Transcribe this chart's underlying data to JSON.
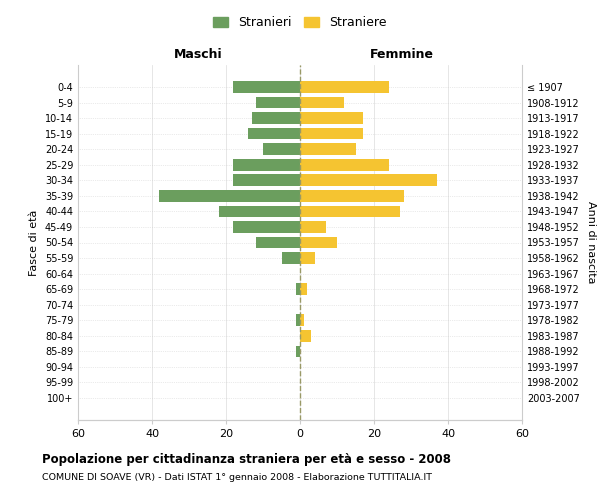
{
  "age_groups": [
    "0-4",
    "5-9",
    "10-14",
    "15-19",
    "20-24",
    "25-29",
    "30-34",
    "35-39",
    "40-44",
    "45-49",
    "50-54",
    "55-59",
    "60-64",
    "65-69",
    "70-74",
    "75-79",
    "80-84",
    "85-89",
    "90-94",
    "95-99",
    "100+"
  ],
  "birth_years": [
    "2003-2007",
    "1998-2002",
    "1993-1997",
    "1988-1992",
    "1983-1987",
    "1978-1982",
    "1973-1977",
    "1968-1972",
    "1963-1967",
    "1958-1962",
    "1953-1957",
    "1948-1952",
    "1943-1947",
    "1938-1942",
    "1933-1937",
    "1928-1932",
    "1923-1927",
    "1918-1922",
    "1913-1917",
    "1908-1912",
    "≤ 1907"
  ],
  "maschi": [
    18,
    12,
    13,
    14,
    10,
    18,
    18,
    38,
    22,
    18,
    12,
    5,
    0,
    1,
    0,
    1,
    0,
    1,
    0,
    0,
    0
  ],
  "femmine": [
    24,
    12,
    17,
    17,
    15,
    24,
    37,
    28,
    27,
    7,
    10,
    4,
    0,
    2,
    0,
    1,
    3,
    0,
    0,
    0,
    0
  ],
  "color_maschi": "#6b9e5e",
  "color_femmine": "#f5c431",
  "xlabel_left": "Maschi",
  "xlabel_right": "Femmine",
  "ylabel_left": "Fasce di età",
  "ylabel_right": "Anni di nascita",
  "legend_maschi": "Stranieri",
  "legend_femmine": "Straniere",
  "title": "Popolazione per cittadinanza straniera per età e sesso - 2008",
  "subtitle": "COMUNE DI SOAVE (VR) - Dati ISTAT 1° gennaio 2008 - Elaborazione TUTTITALIA.IT",
  "xlim": 60,
  "bg_color": "#ffffff",
  "grid_color": "#cccccc",
  "grid_color_y": "#cccccc",
  "dashed_color": "#999966"
}
